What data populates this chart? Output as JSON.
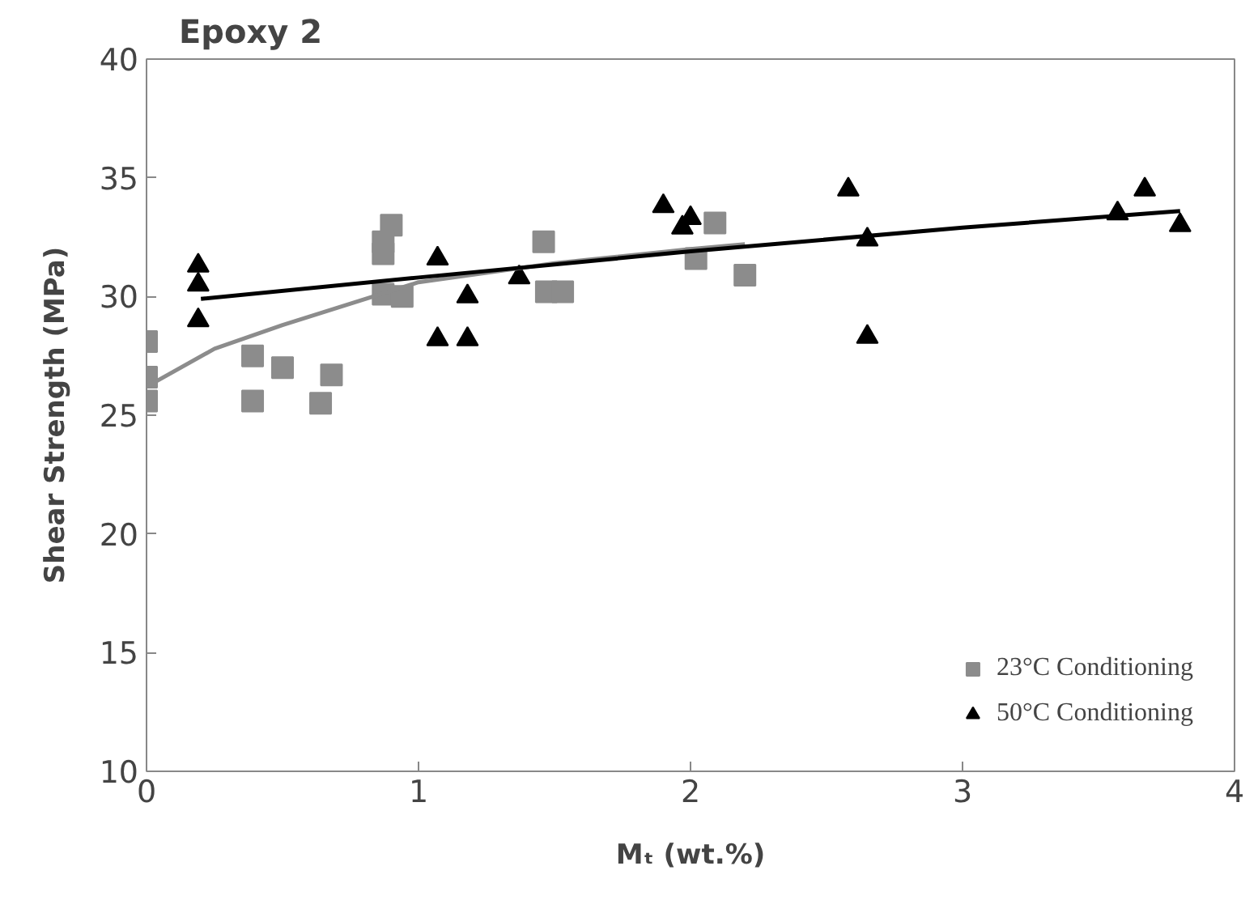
{
  "chart_data": {
    "type": "scatter",
    "title": "Epoxy 2",
    "xlabel": "Mₜ (wt.%)",
    "ylabel": "Shear Strength (MPa)",
    "xlim": [
      0,
      4
    ],
    "ylim": [
      10,
      40
    ],
    "xticks": [
      0,
      1,
      2,
      3,
      4
    ],
    "yticks": [
      10,
      15,
      20,
      25,
      30,
      35,
      40
    ],
    "grid": false,
    "legend": "bottom right",
    "series": [
      {
        "name": "23°C Conditioning",
        "color": "#8c8c8c",
        "marker": "square",
        "x": [
          0,
          0,
          0,
          0.39,
          0.39,
          0.5,
          0.68,
          0.64,
          0.87,
          0.9,
          0.87,
          0.87,
          0.94,
          1.46,
          1.47,
          1.53,
          2.02,
          2.2,
          2.09
        ],
        "values": [
          28.1,
          26.6,
          25.6,
          27.5,
          25.6,
          27.0,
          26.7,
          25.5,
          31.8,
          33.0,
          32.3,
          30.1,
          30.0,
          32.3,
          30.2,
          30.2,
          31.6,
          30.9,
          33.1
        ]
      },
      {
        "name": "50°C Conditioning",
        "color": "#000000",
        "marker": "triangle",
        "x": [
          0.19,
          0.19,
          0.19,
          1.07,
          1.18,
          1.07,
          1.18,
          1.37,
          1.9,
          2.0,
          1.97,
          2.58,
          2.65,
          2.65,
          3.57,
          3.67,
          3.8
        ],
        "values": [
          31.3,
          30.5,
          29.0,
          31.6,
          30.0,
          28.2,
          28.2,
          30.8,
          33.8,
          33.3,
          32.9,
          34.5,
          32.4,
          28.3,
          33.5,
          34.5,
          33.0
        ]
      },
      {
        "type": "line",
        "color": "#8c8c8c",
        "x": [
          0,
          0.25,
          0.5,
          1,
          1.5,
          2,
          2.2
        ],
        "values": [
          26.2,
          27.8,
          28.8,
          30.6,
          31.4,
          32.0,
          32.2
        ]
      },
      {
        "type": "line",
        "color": "#000000",
        "x": [
          0.2,
          1,
          2,
          3,
          3.8
        ],
        "values": [
          29.9,
          30.8,
          31.9,
          32.9,
          33.6
        ]
      }
    ]
  }
}
